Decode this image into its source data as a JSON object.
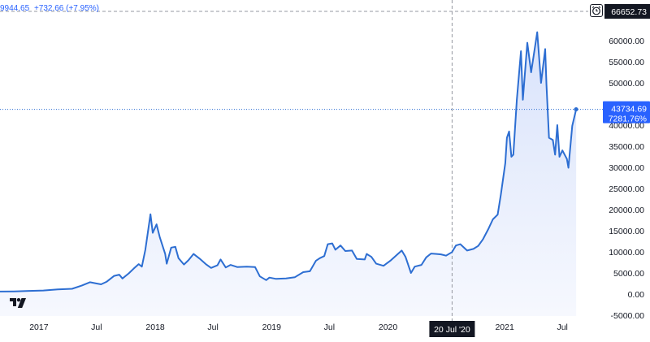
{
  "legend": {
    "close": "9944.65",
    "change": "+732.66 (+7.95%)"
  },
  "price_labels": {
    "top": "66652.73",
    "last_price": "43734.69",
    "last_change": "7281.76%"
  },
  "crosshair_date": "20 Jul '20",
  "colors": {
    "line": "#2d6ed2",
    "accent": "#2962ff",
    "fill_top": "#d9e3fb",
    "fill_bottom": "#f6f8fe",
    "crosshair": "#9598a1",
    "dark_label": "#131722"
  },
  "icons": {
    "alarm": "alarm-clock-icon",
    "logo": "tradingview-logo-icon"
  },
  "chart_data": {
    "type": "area",
    "y_axis_ticks": [
      "60000.00",
      "55000.00",
      "50000.00",
      "45000.00",
      "40000.00",
      "35000.00",
      "30000.00",
      "25000.00",
      "20000.00",
      "15000.00",
      "10000.00",
      "5000.00",
      "0.00",
      "-5000.00"
    ],
    "y_axis_values": [
      60000,
      55000,
      50000,
      45000,
      40000,
      35000,
      30000,
      25000,
      20000,
      15000,
      10000,
      5000,
      0,
      -5000
    ],
    "ylim": [
      -5000,
      66652.73
    ],
    "x_axis_ticks": [
      {
        "label": "2017",
        "date": "2017-01"
      },
      {
        "label": "Jul",
        "date": "2017-07"
      },
      {
        "label": "2018",
        "date": "2018-01"
      },
      {
        "label": "Jul",
        "date": "2018-07"
      },
      {
        "label": "2019",
        "date": "2019-01"
      },
      {
        "label": "Jul",
        "date": "2019-07"
      },
      {
        "label": "2020",
        "date": "2020-01"
      },
      {
        "label": "2021",
        "date": "2021-01"
      },
      {
        "label": "Jul",
        "date": "2021-07"
      }
    ],
    "xlim": [
      "2016-09-01",
      "2021-09-15"
    ],
    "crosshair": {
      "date": "2020-07-20",
      "value": 9944.65
    },
    "last_point": {
      "date": "2021-08-13",
      "value": 43734.69
    },
    "top_line_value": 66652.73,
    "grid": false,
    "points": [
      [
        "2016-09-01",
        600
      ],
      [
        "2016-10-15",
        640
      ],
      [
        "2016-12-01",
        750
      ],
      [
        "2017-01-15",
        850
      ],
      [
        "2017-03-01",
        1100
      ],
      [
        "2017-04-15",
        1250
      ],
      [
        "2017-05-15",
        2000
      ],
      [
        "2017-06-10",
        2800
      ],
      [
        "2017-07-01",
        2500
      ],
      [
        "2017-07-15",
        2300
      ],
      [
        "2017-08-01",
        2900
      ],
      [
        "2017-08-25",
        4300
      ],
      [
        "2017-09-10",
        4600
      ],
      [
        "2017-09-20",
        3700
      ],
      [
        "2017-10-10",
        4900
      ],
      [
        "2017-10-25",
        6000
      ],
      [
        "2017-11-10",
        7100
      ],
      [
        "2017-11-20",
        6500
      ],
      [
        "2017-12-01",
        10500
      ],
      [
        "2017-12-17",
        18900
      ],
      [
        "2017-12-24",
        14500
      ],
      [
        "2018-01-05",
        16500
      ],
      [
        "2018-01-15",
        13500
      ],
      [
        "2018-02-01",
        9500
      ],
      [
        "2018-02-06",
        7200
      ],
      [
        "2018-02-20",
        11000
      ],
      [
        "2018-03-05",
        11200
      ],
      [
        "2018-03-15",
        8500
      ],
      [
        "2018-04-01",
        7000
      ],
      [
        "2018-04-15",
        8000
      ],
      [
        "2018-05-01",
        9500
      ],
      [
        "2018-05-20",
        8400
      ],
      [
        "2018-06-10",
        7000
      ],
      [
        "2018-06-25",
        6200
      ],
      [
        "2018-07-15",
        6800
      ],
      [
        "2018-07-25",
        8200
      ],
      [
        "2018-08-10",
        6300
      ],
      [
        "2018-08-25",
        6900
      ],
      [
        "2018-09-15",
        6400
      ],
      [
        "2018-10-15",
        6500
      ],
      [
        "2018-11-10",
        6400
      ],
      [
        "2018-11-25",
        4200
      ],
      [
        "2018-12-15",
        3300
      ],
      [
        "2018-12-25",
        3900
      ],
      [
        "2019-01-15",
        3600
      ],
      [
        "2019-02-15",
        3700
      ],
      [
        "2019-03-15",
        4000
      ],
      [
        "2019-04-10",
        5200
      ],
      [
        "2019-05-01",
        5400
      ],
      [
        "2019-05-20",
        7900
      ],
      [
        "2019-06-01",
        8500
      ],
      [
        "2019-06-15",
        9000
      ],
      [
        "2019-06-26",
        11800
      ],
      [
        "2019-07-10",
        12000
      ],
      [
        "2019-07-20",
        10500
      ],
      [
        "2019-08-05",
        11500
      ],
      [
        "2019-08-20",
        10200
      ],
      [
        "2019-09-10",
        10300
      ],
      [
        "2019-09-25",
        8300
      ],
      [
        "2019-10-20",
        8200
      ],
      [
        "2019-10-26",
        9500
      ],
      [
        "2019-11-10",
        8800
      ],
      [
        "2019-11-25",
        7200
      ],
      [
        "2019-12-18",
        6700
      ],
      [
        "2020-01-10",
        8000
      ],
      [
        "2020-02-01",
        9500
      ],
      [
        "2020-02-13",
        10300
      ],
      [
        "2020-02-25",
        8800
      ],
      [
        "2020-03-13",
        5000
      ],
      [
        "2020-03-25",
        6500
      ],
      [
        "2020-04-15",
        6900
      ],
      [
        "2020-04-30",
        8700
      ],
      [
        "2020-05-15",
        9600
      ],
      [
        "2020-06-01",
        9500
      ],
      [
        "2020-06-15",
        9400
      ],
      [
        "2020-07-01",
        9100
      ],
      [
        "2020-07-20",
        9944.65
      ],
      [
        "2020-08-01",
        11500
      ],
      [
        "2020-08-15",
        11800
      ],
      [
        "2020-09-05",
        10300
      ],
      [
        "2020-09-25",
        10700
      ],
      [
        "2020-10-10",
        11400
      ],
      [
        "2020-10-25",
        13000
      ],
      [
        "2020-11-10",
        15300
      ],
      [
        "2020-11-25",
        17700
      ],
      [
        "2020-12-10",
        18800
      ],
      [
        "2020-12-20",
        23500
      ],
      [
        "2021-01-03",
        31000
      ],
      [
        "2021-01-08",
        37000
      ],
      [
        "2021-01-15",
        38500
      ],
      [
        "2021-01-22",
        32500
      ],
      [
        "2021-01-28",
        33000
      ],
      [
        "2021-02-08",
        46000
      ],
      [
        "2021-02-21",
        57500
      ],
      [
        "2021-02-27",
        46000
      ],
      [
        "2021-03-13",
        59500
      ],
      [
        "2021-03-25",
        52500
      ],
      [
        "2021-04-13",
        62000
      ],
      [
        "2021-04-25",
        50000
      ],
      [
        "2021-05-08",
        58000
      ],
      [
        "2021-05-12",
        49500
      ],
      [
        "2021-05-20",
        37000
      ],
      [
        "2021-06-01",
        36500
      ],
      [
        "2021-06-08",
        33000
      ],
      [
        "2021-06-15",
        40000
      ],
      [
        "2021-06-22",
        32500
      ],
      [
        "2021-07-01",
        34000
      ],
      [
        "2021-07-15",
        32000
      ],
      [
        "2021-07-20",
        29900
      ],
      [
        "2021-08-01",
        39800
      ],
      [
        "2021-08-13",
        43734.69
      ]
    ]
  }
}
